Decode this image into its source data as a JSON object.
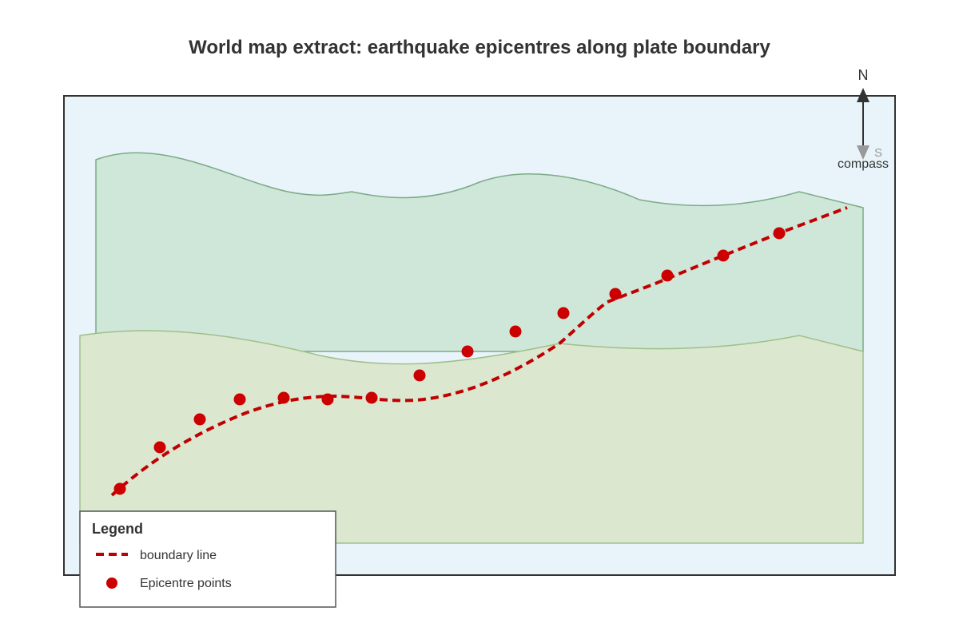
{
  "title": "World map extract: earthquake epicentres along plate boundary",
  "colors": {
    "ocean": "#e8f4fa",
    "frame": "#333333",
    "plate_north_fill": "#cfe7d8",
    "plate_north_stroke": "#7aab87",
    "plate_south_fill": "#dbe7cf",
    "plate_south_stroke": "#9ec08a",
    "boundary": "#c00000",
    "epicentre": "#cc0000",
    "compass_north": "#333333",
    "compass_south": "#999999"
  },
  "compass": {
    "north_label": "N",
    "south_label": "S",
    "caption": "compass"
  },
  "features": {
    "boundary_line": "boundary-line",
    "epicentres": "epicentre-points"
  },
  "legend": {
    "title": "Legend",
    "items": [
      {
        "label": "boundary line",
        "symbol": "dashed-line"
      },
      {
        "label": "Epicentre points",
        "symbol": "circle"
      }
    ]
  }
}
